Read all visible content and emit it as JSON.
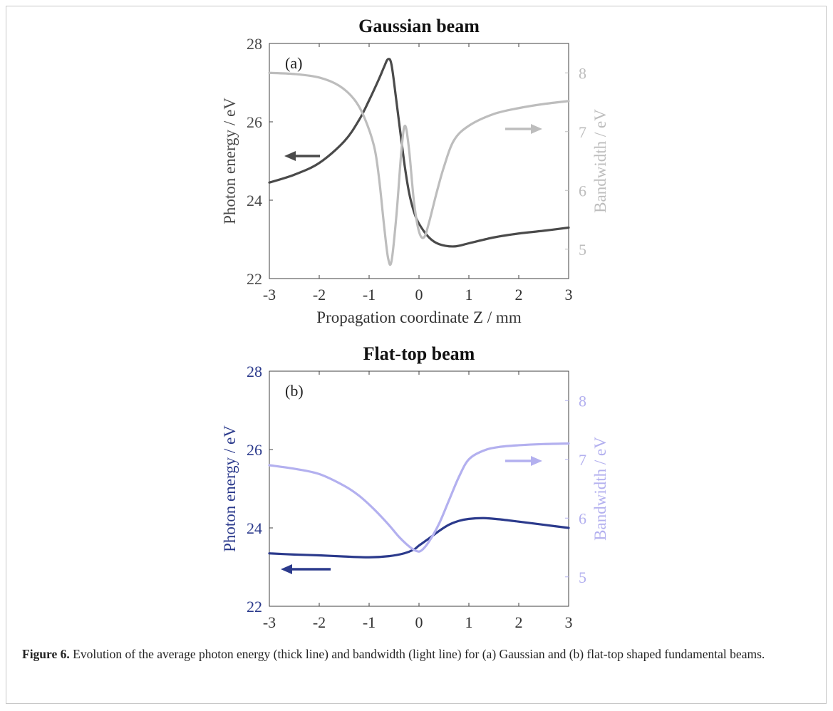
{
  "caption": {
    "label": "Figure 6.",
    "text": "Evolution of the average photon energy (thick line) and bandwidth (light line) for (a) Gaussian and (b) flat-top shaped fundamental beams."
  },
  "chart_data": [
    {
      "type": "line",
      "title": "Gaussian beam",
      "panel_label": "(a)",
      "xlabel": "Propagation coordinate Z / mm",
      "ylabel": "Photon energy / eV",
      "y2label": "Bandwidth / eV",
      "xlim": [
        -3,
        3
      ],
      "ylim": [
        22,
        28
      ],
      "y2lim": [
        4.5,
        8.5
      ],
      "xticks": [
        "-3",
        "-2",
        "-1",
        "0",
        "1",
        "2",
        "3"
      ],
      "yticks": [
        "22",
        "24",
        "26",
        "28"
      ],
      "y2ticks": [
        "5",
        "6",
        "7",
        "8"
      ],
      "colors": {
        "energy": "#4a4a4a",
        "bandwidth": "#bdbdbd",
        "axis": "#404040"
      },
      "series": [
        {
          "name": "Photon energy",
          "axis": "left",
          "x": [
            -3,
            -2.5,
            -2,
            -1.5,
            -1.2,
            -1,
            -0.8,
            -0.7,
            -0.62,
            -0.55,
            -0.45,
            -0.3,
            -0.2,
            -0.1,
            0,
            0.2,
            0.4,
            0.7,
            1,
            1.5,
            2,
            2.5,
            3
          ],
          "y": [
            24.45,
            24.65,
            24.95,
            25.5,
            26.05,
            26.55,
            27.1,
            27.4,
            27.6,
            27.45,
            26.5,
            25.0,
            24.2,
            23.7,
            23.4,
            23.05,
            22.88,
            22.82,
            22.9,
            23.05,
            23.15,
            23.22,
            23.3
          ]
        },
        {
          "name": "Bandwidth",
          "axis": "right",
          "x": [
            -3,
            -2.5,
            -2,
            -1.6,
            -1.3,
            -1.1,
            -0.9,
            -0.8,
            -0.7,
            -0.62,
            -0.55,
            -0.45,
            -0.35,
            -0.28,
            -0.2,
            -0.1,
            0,
            0.1,
            0.2,
            0.35,
            0.5,
            0.7,
            1,
            1.5,
            2,
            2.5,
            3
          ],
          "y": [
            8.0,
            7.98,
            7.92,
            7.78,
            7.55,
            7.25,
            6.75,
            6.2,
            5.4,
            4.85,
            4.8,
            5.6,
            6.7,
            7.1,
            6.7,
            5.8,
            5.3,
            5.2,
            5.45,
            5.95,
            6.4,
            6.85,
            7.1,
            7.3,
            7.4,
            7.47,
            7.52
          ]
        }
      ]
    },
    {
      "type": "line",
      "title": "Flat-top beam",
      "panel_label": "(b)",
      "xlabel": "Propagation coordinate Z / mm",
      "ylabel": "Photon energy / eV",
      "y2label": "Bandwidth / eV",
      "xlim": [
        -3,
        3
      ],
      "ylim": [
        22,
        28
      ],
      "y2lim": [
        4.5,
        8.5
      ],
      "xticks": [
        "-3",
        "-2",
        "-1",
        "0",
        "1",
        "2",
        "3"
      ],
      "yticks": [
        "22",
        "24",
        "26",
        "28"
      ],
      "y2ticks": [
        "5",
        "6",
        "7",
        "8"
      ],
      "colors": {
        "energy": "#2b3a8c",
        "bandwidth": "#b3b0ef",
        "axis": "#404040"
      },
      "series": [
        {
          "name": "Photon energy",
          "axis": "left",
          "x": [
            -3,
            -2.5,
            -2,
            -1.5,
            -1,
            -0.6,
            -0.3,
            -0.1,
            0,
            0.2,
            0.4,
            0.6,
            0.8,
            1,
            1.3,
            1.6,
            2,
            2.5,
            3
          ],
          "y": [
            23.35,
            23.32,
            23.3,
            23.27,
            23.25,
            23.28,
            23.35,
            23.45,
            23.55,
            23.73,
            23.92,
            24.08,
            24.18,
            24.23,
            24.25,
            24.22,
            24.16,
            24.08,
            24.0
          ]
        },
        {
          "name": "Bandwidth",
          "axis": "right",
          "x": [
            -3,
            -2.5,
            -2,
            -1.5,
            -1.2,
            -0.9,
            -0.6,
            -0.4,
            -0.2,
            -0.05,
            0.05,
            0.2,
            0.4,
            0.6,
            0.8,
            1,
            1.3,
            1.6,
            2,
            2.5,
            3
          ],
          "y": [
            6.9,
            6.84,
            6.75,
            6.55,
            6.38,
            6.15,
            5.88,
            5.68,
            5.52,
            5.44,
            5.45,
            5.6,
            5.9,
            6.3,
            6.7,
            7.0,
            7.15,
            7.21,
            7.24,
            7.26,
            7.27
          ]
        }
      ]
    }
  ]
}
